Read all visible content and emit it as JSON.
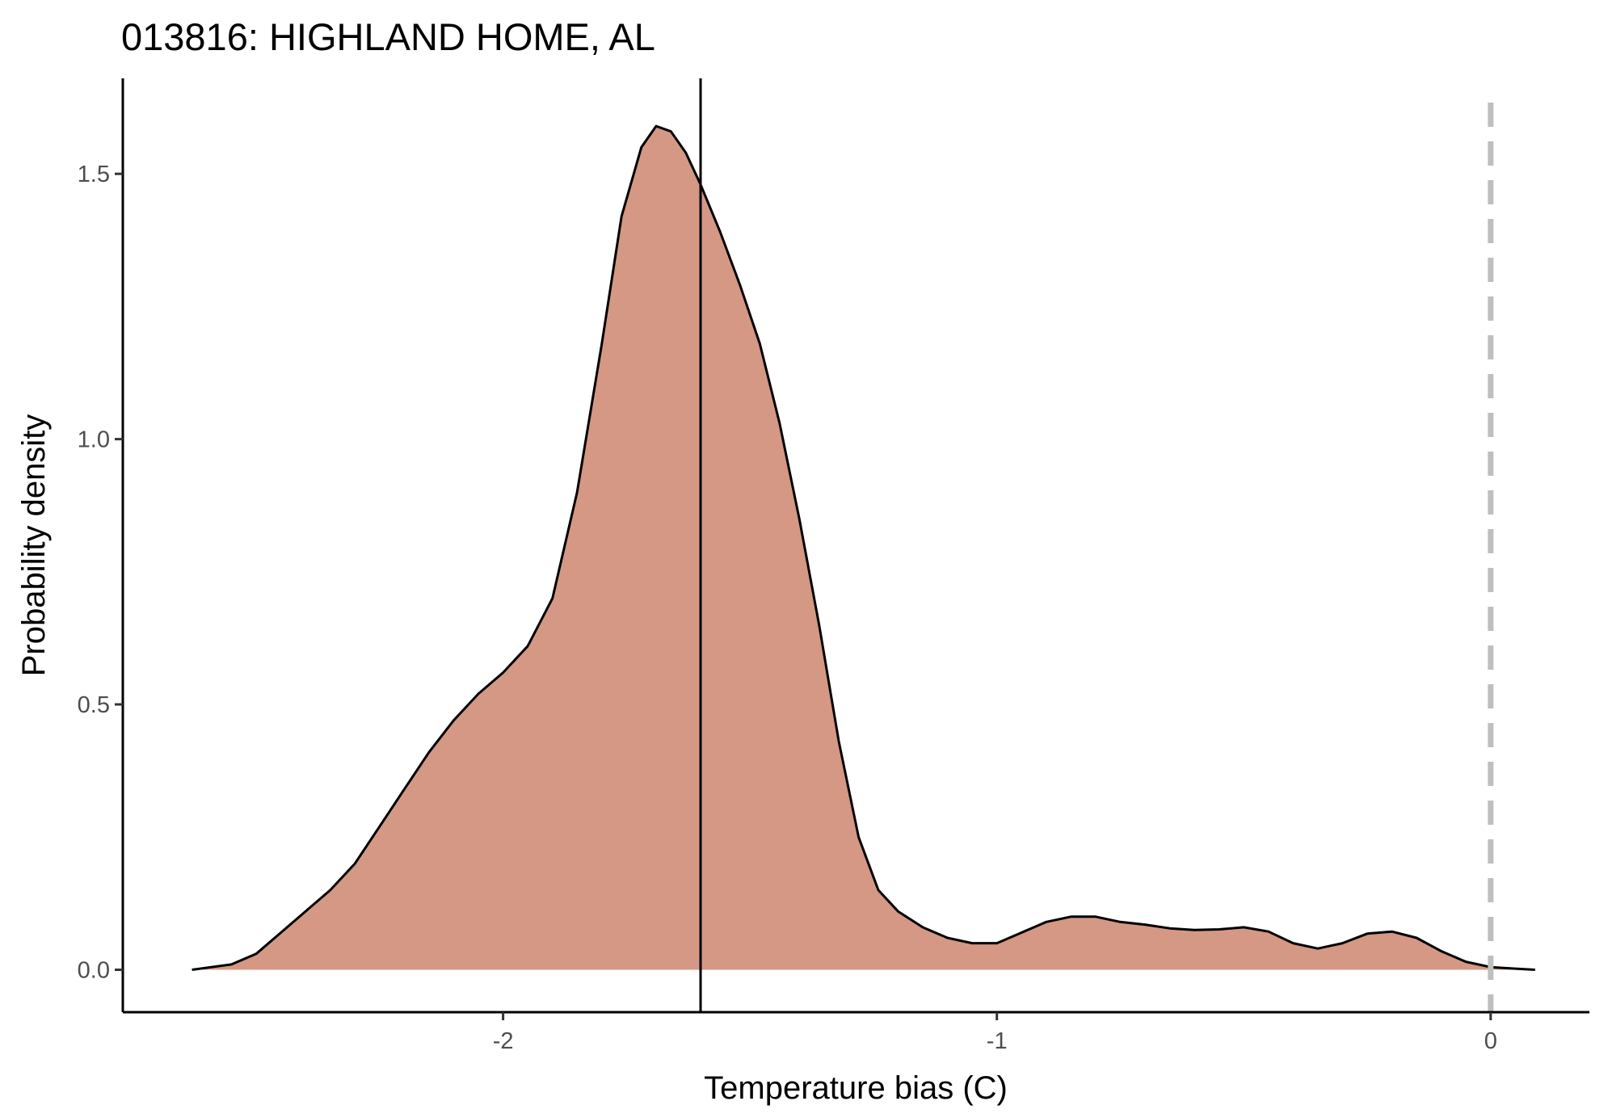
{
  "chart_data": {
    "type": "area",
    "title": "013816: HIGHLAND HOME, AL",
    "xlabel": "Temperature bias (C)",
    "ylabel": "Probability density",
    "xlim": [
      -2.77,
      0.2
    ],
    "ylim": [
      -0.08,
      1.68
    ],
    "x_ticks": [
      -2,
      -1,
      0
    ],
    "x_tick_labels": [
      "-2",
      "-1",
      "0"
    ],
    "y_ticks": [
      0.0,
      0.5,
      1.0,
      1.5
    ],
    "y_tick_labels": [
      "0.0",
      "0.5",
      "1.0",
      "1.5"
    ],
    "grid": false,
    "legend": "none",
    "fill_color": "#d49884",
    "line_color": "#000000",
    "reference_lines": [
      {
        "x": -1.6,
        "style": "solid",
        "color": "#000000"
      },
      {
        "x": 0,
        "style": "dashed",
        "color": "#bfbfbf"
      }
    ],
    "series": [
      {
        "x": [
          -2.63,
          -2.55,
          -2.5,
          -2.45,
          -2.4,
          -2.35,
          -2.3,
          -2.25,
          -2.2,
          -2.15,
          -2.1,
          -2.05,
          -2.0,
          -1.95,
          -1.9,
          -1.85,
          -1.8,
          -1.76,
          -1.72,
          -1.69,
          -1.66,
          -1.63,
          -1.6,
          -1.56,
          -1.52,
          -1.48,
          -1.44,
          -1.4,
          -1.36,
          -1.32,
          -1.28,
          -1.24,
          -1.2,
          -1.15,
          -1.1,
          -1.05,
          -1.0,
          -0.95,
          -0.9,
          -0.85,
          -0.8,
          -0.75,
          -0.7,
          -0.65,
          -0.6,
          -0.55,
          -0.5,
          -0.45,
          -0.4,
          -0.35,
          -0.3,
          -0.25,
          -0.2,
          -0.15,
          -0.1,
          -0.05,
          0.0,
          0.05,
          0.09
        ],
        "y": [
          0.0,
          0.01,
          0.03,
          0.07,
          0.11,
          0.15,
          0.2,
          0.27,
          0.34,
          0.41,
          0.47,
          0.52,
          0.56,
          0.61,
          0.7,
          0.9,
          1.18,
          1.42,
          1.55,
          1.59,
          1.58,
          1.54,
          1.48,
          1.39,
          1.29,
          1.18,
          1.03,
          0.85,
          0.65,
          0.43,
          0.25,
          0.15,
          0.11,
          0.08,
          0.06,
          0.05,
          0.05,
          0.07,
          0.09,
          0.1,
          0.1,
          0.09,
          0.085,
          0.078,
          0.075,
          0.076,
          0.08,
          0.072,
          0.05,
          0.04,
          0.05,
          0.068,
          0.072,
          0.06,
          0.035,
          0.015,
          0.005,
          0.002,
          0.0
        ]
      }
    ]
  }
}
